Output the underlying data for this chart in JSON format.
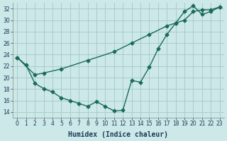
{
  "xlabel": "Humidex (Indice chaleur)",
  "bg_color": "#cce8e8",
  "grid_color": "#aacccc",
  "line_color": "#1a6b5a",
  "xlim": [
    -0.5,
    23.5
  ],
  "ylim": [
    13,
    33
  ],
  "yticks": [
    14,
    16,
    18,
    20,
    22,
    24,
    26,
    28,
    30,
    32
  ],
  "xticks": [
    0,
    1,
    2,
    3,
    4,
    5,
    6,
    7,
    8,
    9,
    10,
    11,
    12,
    13,
    14,
    15,
    16,
    17,
    18,
    19,
    20,
    21,
    22,
    23
  ],
  "series1_x": [
    0,
    1,
    2,
    3,
    4,
    5,
    6,
    7,
    8,
    9,
    10,
    11,
    12,
    13,
    14,
    15,
    16,
    17,
    18,
    19,
    20,
    21,
    22,
    23
  ],
  "series1_y": [
    23.5,
    22.2,
    19.0,
    18.1,
    17.5,
    16.5,
    16.0,
    15.5,
    15.0,
    15.8,
    15.0,
    14.2,
    14.3,
    19.5,
    19.2,
    21.8,
    25.0,
    27.5,
    29.5,
    31.5,
    32.5,
    31.0,
    31.5,
    32.3
  ],
  "series2_x": [
    0,
    2,
    3,
    5,
    8,
    11,
    13,
    15,
    17,
    18,
    19,
    20,
    21,
    22,
    23
  ],
  "series2_y": [
    23.5,
    20.5,
    20.8,
    21.5,
    23.0,
    24.5,
    26.0,
    27.5,
    29.0,
    29.5,
    30.0,
    31.5,
    31.8,
    31.8,
    32.3
  ],
  "marker": "D",
  "marker_size": 2.5,
  "linewidth": 1.0
}
